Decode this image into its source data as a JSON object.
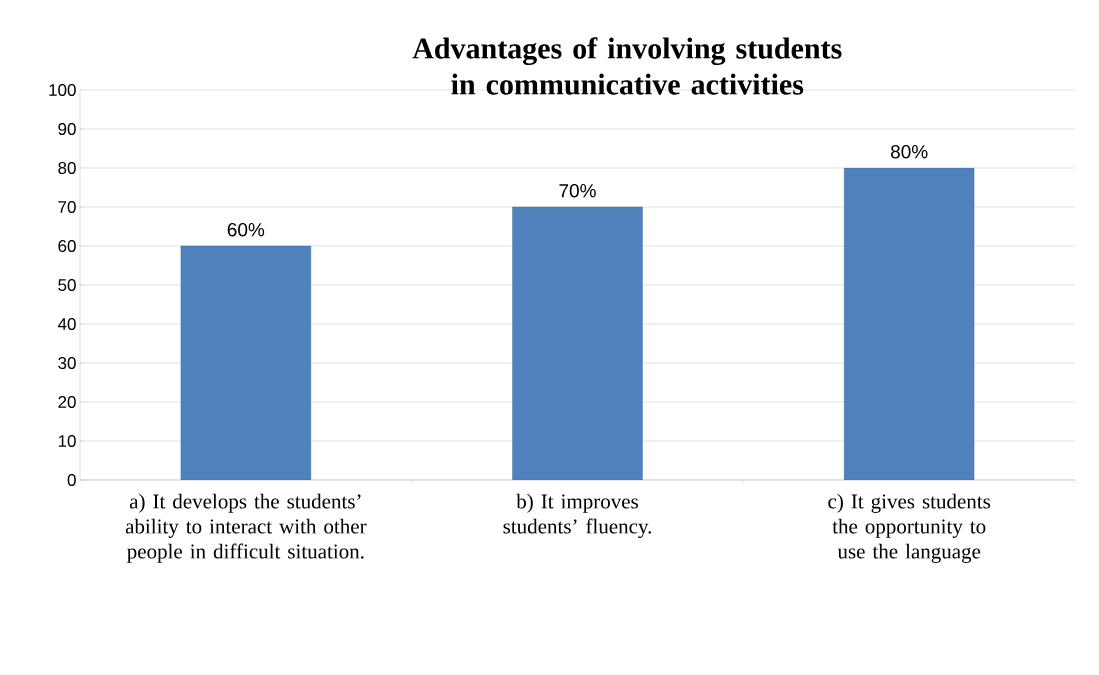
{
  "chart_data": {
    "type": "bar",
    "title": "Advantages of involving students in communicative activities",
    "categories": [
      "a) It develops the students’ ability to interact with other people in difficult situation.",
      "b) It improves students’ fluency.",
      "c) It gives students the opportunity to use the language"
    ],
    "values": [
      60,
      70,
      80
    ],
    "value_labels": [
      "60%",
      "70%",
      "80%"
    ],
    "color": "#4f81bd",
    "ylim": [
      0,
      100
    ],
    "yticks": [
      0,
      10,
      20,
      30,
      40,
      50,
      60,
      70,
      80,
      90,
      100
    ],
    "grid": "y"
  }
}
